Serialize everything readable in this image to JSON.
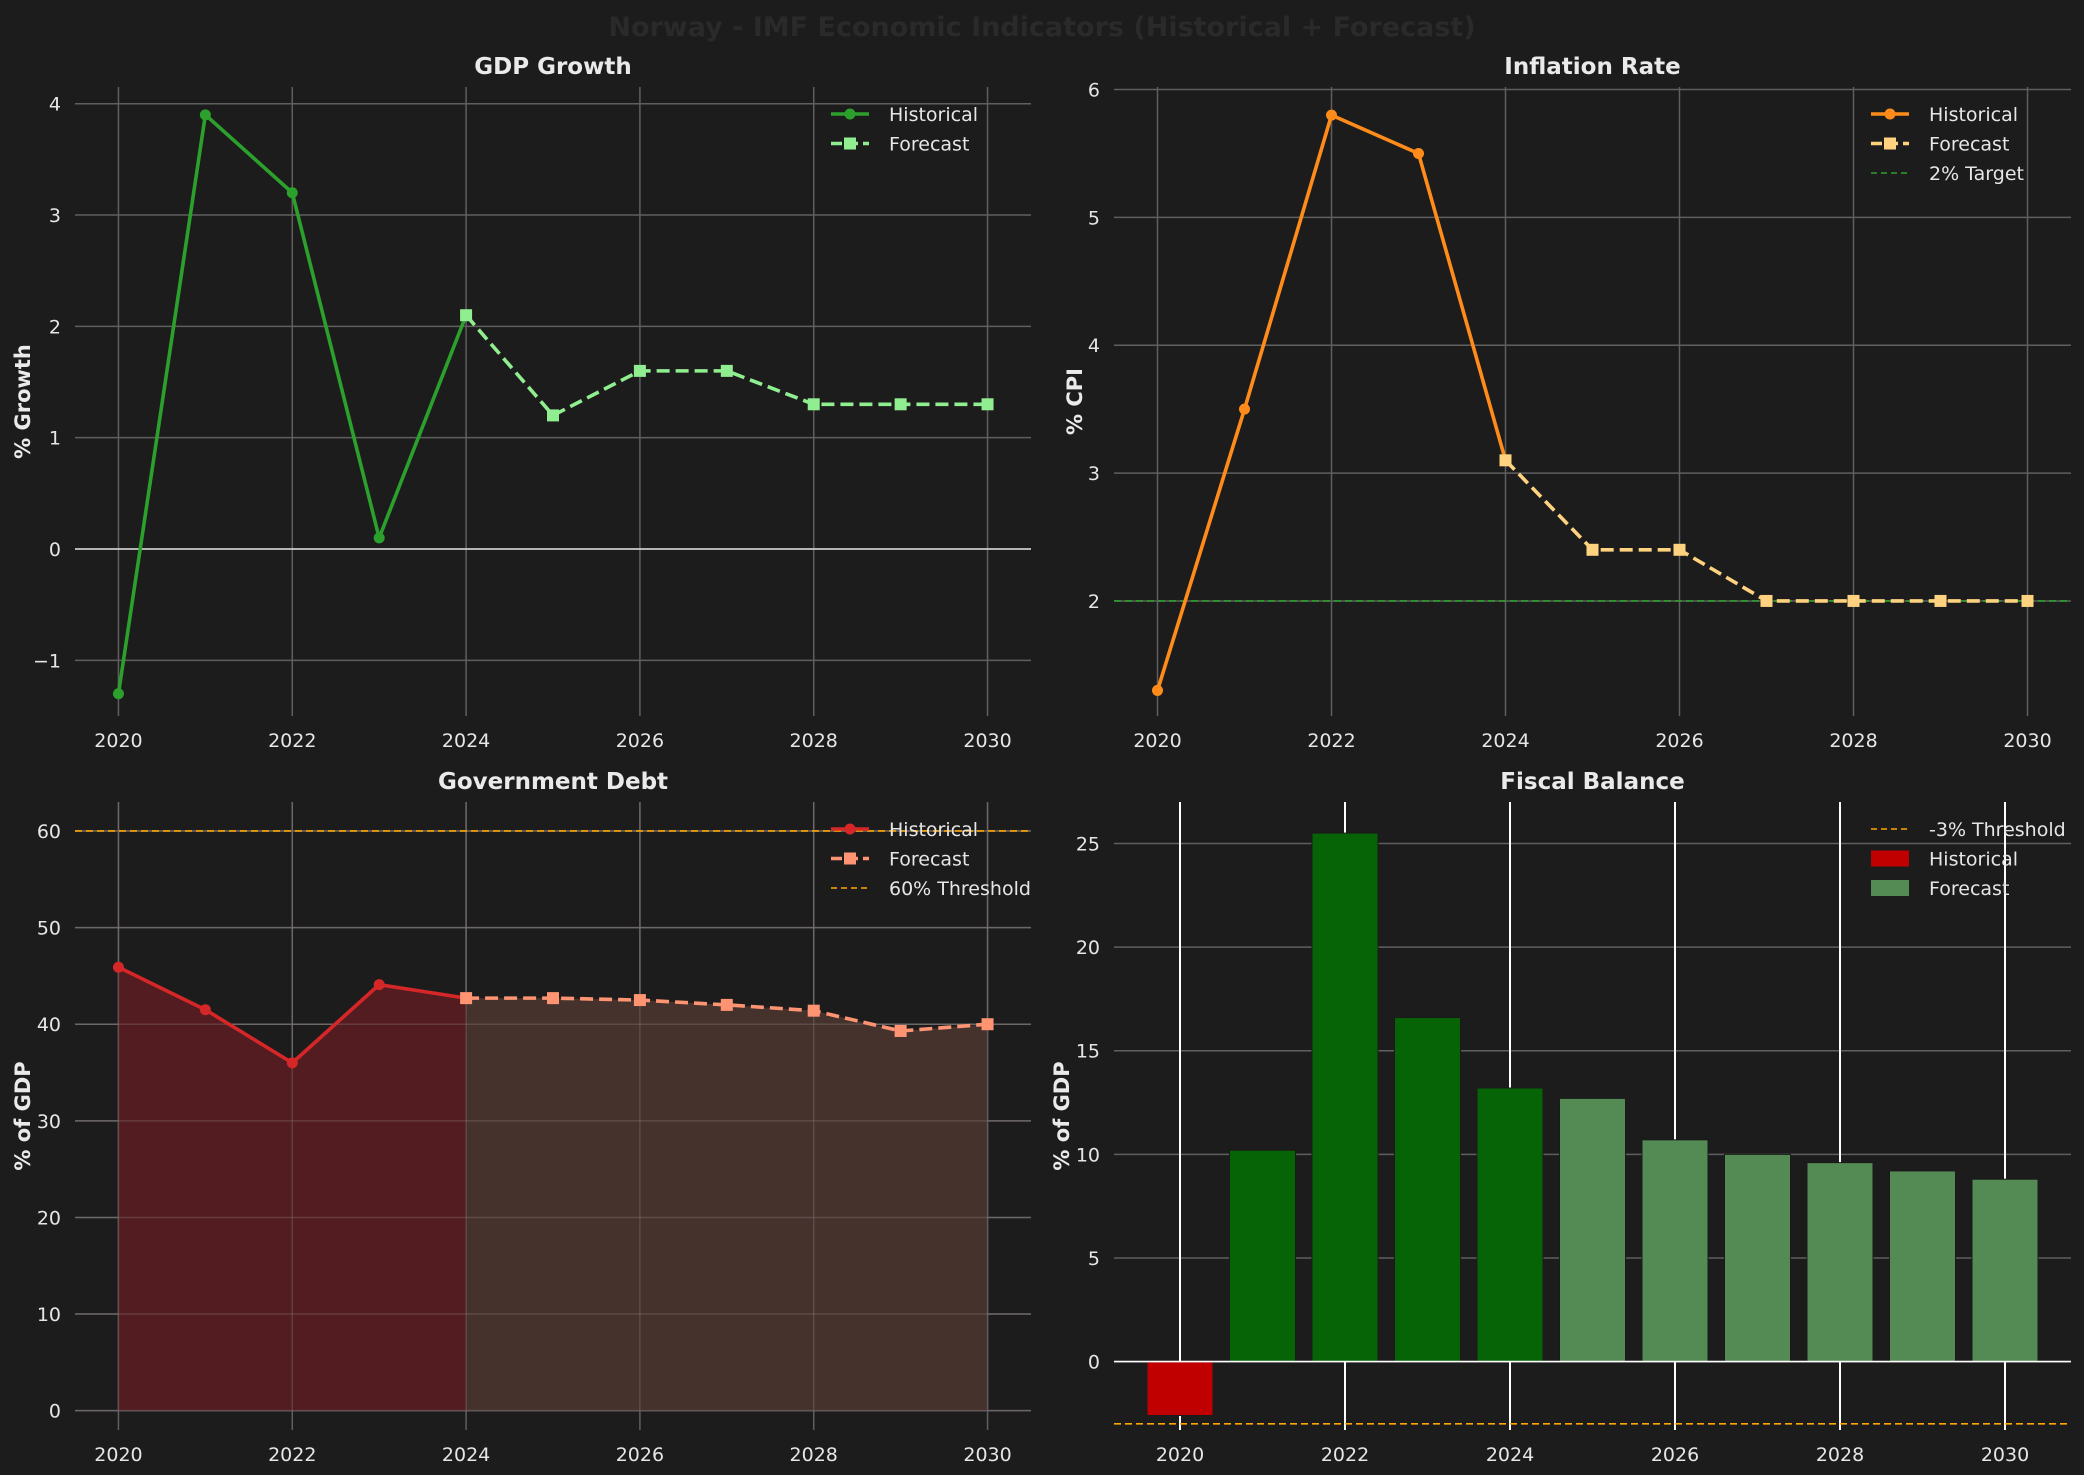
{
  "figure": {
    "title": "Norway - IMF Economic Indicators (Historical + Forecast)",
    "background": "#1c1c1c",
    "title_color": "#2a2a2a"
  },
  "chart_data": [
    {
      "id": "gdp",
      "type": "line",
      "title": "GDP Growth",
      "ylabel": "% Growth",
      "xlabel": "",
      "xlim": [
        2019.5,
        2030.5
      ],
      "ylim": [
        -1.5,
        4.15
      ],
      "xticks": [
        2020,
        2022,
        2024,
        2026,
        2028,
        2030
      ],
      "yticks": [
        -1,
        0,
        1,
        2,
        3,
        4
      ],
      "ytick_labels": [
        "−1",
        "0",
        "1",
        "2",
        "3",
        "4"
      ],
      "zero_line": true,
      "series": [
        {
          "name": "Historical",
          "style": "solid",
          "marker": "circle",
          "color": "#2ca02c",
          "x": [
            2020,
            2021,
            2022,
            2023,
            2024
          ],
          "values": [
            -1.3,
            3.9,
            3.2,
            0.1,
            2.1
          ]
        },
        {
          "name": "Forecast",
          "style": "dashed",
          "marker": "square",
          "color": "#90ee90",
          "x": [
            2024,
            2025,
            2026,
            2027,
            2028,
            2029,
            2030
          ],
          "values": [
            2.1,
            1.2,
            1.6,
            1.6,
            1.3,
            1.3,
            1.3
          ]
        }
      ],
      "legend": [
        {
          "label": "Historical",
          "kind": "line-circle",
          "color": "#2ca02c"
        },
        {
          "label": "Forecast",
          "kind": "dash-square",
          "color": "#90ee90"
        }
      ],
      "legend_position": "upper right"
    },
    {
      "id": "inflation",
      "type": "line",
      "title": "Inflation Rate",
      "ylabel": "% CPI",
      "xlabel": "",
      "xlim": [
        2019.5,
        2030.5
      ],
      "ylim": [
        1.1,
        6.02
      ],
      "xticks": [
        2020,
        2022,
        2024,
        2026,
        2028,
        2030
      ],
      "yticks": [
        2,
        3,
        4,
        5,
        6
      ],
      "ytick_labels": [
        "2",
        "3",
        "4",
        "5",
        "6"
      ],
      "hline": {
        "value": 2,
        "label": "2% Target",
        "color": "#2ca02c",
        "style": "dashed"
      },
      "series": [
        {
          "name": "Historical",
          "style": "solid",
          "marker": "circle",
          "color": "#ff8c1a",
          "x": [
            2020,
            2021,
            2022,
            2023,
            2024
          ],
          "values": [
            1.3,
            3.5,
            5.8,
            5.5,
            3.1
          ]
        },
        {
          "name": "Forecast",
          "style": "dashed",
          "marker": "square",
          "color": "#ffd27f",
          "x": [
            2024,
            2025,
            2026,
            2027,
            2028,
            2029,
            2030
          ],
          "values": [
            3.1,
            2.4,
            2.4,
            2.0,
            2.0,
            2.0,
            2.0
          ]
        }
      ],
      "legend": [
        {
          "label": "Historical",
          "kind": "line-circle",
          "color": "#ff8c1a"
        },
        {
          "label": "Forecast",
          "kind": "dash-square",
          "color": "#ffd27f"
        },
        {
          "label": "2% Target",
          "kind": "thin-dash",
          "color": "#2ca02c"
        }
      ],
      "legend_position": "upper right"
    },
    {
      "id": "debt",
      "type": "area",
      "title": "Government Debt",
      "ylabel": "% of GDP",
      "xlabel": "",
      "xlim": [
        2019.5,
        2030.5
      ],
      "ylim": [
        -2,
        63
      ],
      "xticks": [
        2020,
        2022,
        2024,
        2026,
        2028,
        2030
      ],
      "yticks": [
        0,
        10,
        20,
        30,
        40,
        50,
        60
      ],
      "ytick_labels": [
        "0",
        "10",
        "20",
        "30",
        "40",
        "50",
        "60"
      ],
      "hline": {
        "value": 60,
        "label": "60% Threshold",
        "color": "#ffa500",
        "style": "dashed"
      },
      "series": [
        {
          "name": "Historical",
          "style": "solid",
          "marker": "circle",
          "color": "#d62728",
          "fill": "#521c20",
          "x": [
            2020,
            2021,
            2022,
            2023,
            2024
          ],
          "values": [
            45.9,
            41.5,
            36.0,
            44.1,
            42.7
          ]
        },
        {
          "name": "Forecast",
          "style": "dashed",
          "marker": "square",
          "color": "#ff9473",
          "fill": "#46322d",
          "x": [
            2024,
            2025,
            2026,
            2027,
            2028,
            2029,
            2030
          ],
          "values": [
            42.7,
            42.7,
            42.5,
            42.0,
            41.4,
            39.3,
            40.0
          ]
        }
      ],
      "legend": [
        {
          "label": "Historical",
          "kind": "line-circle",
          "color": "#d62728"
        },
        {
          "label": "Forecast",
          "kind": "dash-square",
          "color": "#ff9473"
        },
        {
          "label": "60% Threshold",
          "kind": "thin-dash",
          "color": "#ffa500"
        }
      ],
      "legend_position": "upper right"
    },
    {
      "id": "fiscal",
      "type": "bar",
      "title": "Fiscal Balance",
      "ylabel": "% of GDP",
      "xlabel": "",
      "xlim": [
        2019.2,
        2030.8
      ],
      "ylim": [
        -3.3,
        27.0
      ],
      "xticks": [
        2020,
        2022,
        2024,
        2026,
        2028,
        2030
      ],
      "yticks": [
        0,
        5,
        10,
        15,
        20,
        25
      ],
      "ytick_labels": [
        "0",
        "5",
        "10",
        "15",
        "20",
        "25"
      ],
      "bar_width": 0.8,
      "hline": {
        "value": -3,
        "label": "-3% Threshold",
        "color": "#ffa500",
        "style": "dashed"
      },
      "zero_line": true,
      "series": [
        {
          "name": "Historical",
          "x": [
            2020,
            2021,
            2022,
            2023,
            2024
          ],
          "values": [
            -2.6,
            10.2,
            25.5,
            16.6,
            13.2
          ],
          "colors": [
            "#c00000",
            "#066406",
            "#066406",
            "#066406",
            "#066406"
          ]
        },
        {
          "name": "Forecast",
          "x": [
            2025,
            2026,
            2027,
            2028,
            2029,
            2030
          ],
          "values": [
            12.7,
            10.7,
            10.0,
            9.6,
            9.2,
            8.8
          ],
          "colors": [
            "#548b54",
            "#548b54",
            "#548b54",
            "#548b54",
            "#548b54",
            "#548b54"
          ]
        }
      ],
      "legend": [
        {
          "label": "-3% Threshold",
          "kind": "thin-dash",
          "color": "#ffa500"
        },
        {
          "label": "Historical",
          "kind": "patch",
          "color": "#c00000"
        },
        {
          "label": "Forecast",
          "kind": "patch",
          "color": "#548b54"
        }
      ],
      "legend_position": "upper right"
    }
  ]
}
